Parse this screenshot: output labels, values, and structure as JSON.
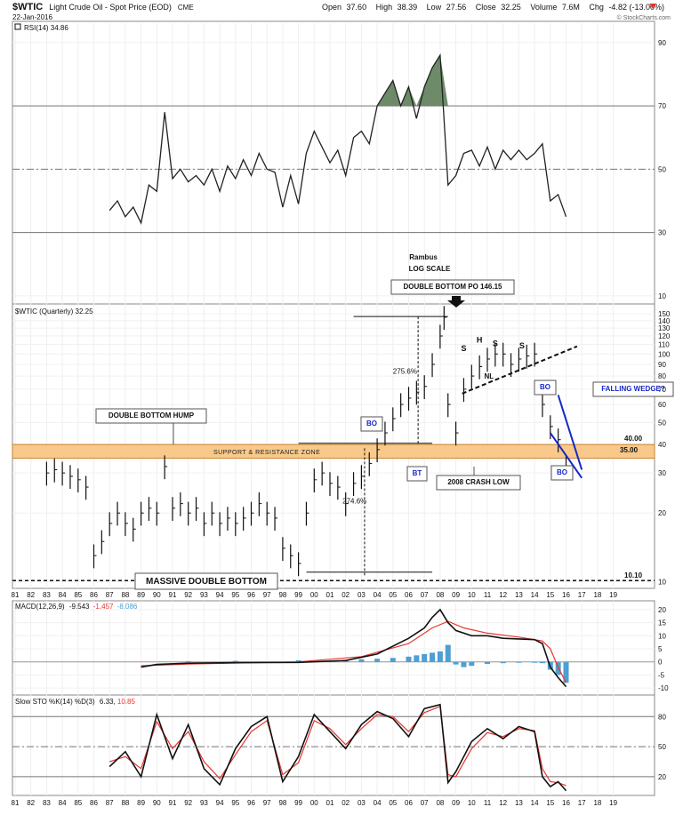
{
  "header": {
    "symbol": "$WTIC",
    "name": "Light Crude Oil - Spot Price (EOD)",
    "exchange": "CME",
    "date": "22-Jan-2016",
    "open_label": "Open",
    "open": "37.60",
    "high_label": "High",
    "high": "38.39",
    "low_label": "Low",
    "low": "27.56",
    "close_label": "Close",
    "close": "32.25",
    "volume_label": "Volume",
    "volume": "7.6M",
    "chg_label": "Chg",
    "chg": "-4.82 (-13.00%)",
    "watermark": "© StockCharts.com"
  },
  "colors": {
    "price": "#111111",
    "macd_signal": "#e8352e",
    "histogram": "#4f9fd1",
    "zone": "#f8c98a",
    "rsi_fill": "#5d7e59",
    "annotation_blue": "#1728c8"
  },
  "x_axis_labels": [
    "81",
    "82",
    "83",
    "84",
    "85",
    "86",
    "87",
    "88",
    "89",
    "90",
    "91",
    "92",
    "93",
    "94",
    "95",
    "96",
    "97",
    "98",
    "99",
    "00",
    "01",
    "02",
    "03",
    "04",
    "05",
    "06",
    "07",
    "08",
    "09",
    "10",
    "11",
    "12",
    "13",
    "14",
    "15",
    "16",
    "17",
    "18",
    "19"
  ],
  "chart_data": [
    {
      "type": "line",
      "title": "RSI(14) 34.86",
      "legend_value": "34.86",
      "ylim": [
        8,
        95
      ],
      "y_ticks": [
        10,
        30,
        50,
        70,
        90
      ],
      "reference_lines": [
        30,
        50,
        70
      ],
      "series": [
        {
          "x": [
            1987.0,
            1987.5,
            1988.0,
            1988.5,
            1989.0,
            1989.5,
            1990.0,
            1990.5,
            1991.0,
            1991.5,
            1992.0,
            1992.5,
            1993.0,
            1993.5,
            1994.0,
            1994.5,
            1995.0,
            1995.5,
            1996.0,
            1996.5,
            1997.0,
            1997.5,
            1998.0,
            1998.5,
            1999.0,
            1999.5,
            2000.0,
            2000.5,
            2001.0,
            2001.5,
            2002.0,
            2002.5,
            2003.0,
            2003.5,
            2004.0,
            2004.5,
            2005.0,
            2005.5,
            2006.0,
            2006.5,
            2007.0,
            2007.5,
            2008.0,
            2008.5,
            2009.0,
            2009.5,
            2010.0,
            2010.5,
            2011.0,
            2011.5,
            2012.0,
            2012.5,
            2013.0,
            2013.5,
            2014.0,
            2014.5,
            2015.0,
            2015.5,
            2016.0
          ],
          "y": [
            37,
            40,
            35,
            38,
            33,
            45,
            43,
            68,
            47,
            50,
            46,
            48,
            45,
            50,
            43,
            51,
            47,
            53,
            48,
            55,
            50,
            49,
            38,
            48,
            39,
            55,
            62,
            57,
            52,
            56,
            48,
            60,
            62,
            58,
            70,
            74,
            78,
            70,
            76,
            66,
            76,
            82,
            86,
            45,
            48,
            55,
            56,
            51,
            57,
            50,
            56,
            53,
            56,
            53,
            55,
            58,
            40,
            42,
            35
          ]
        }
      ],
      "overbought_fills": [
        [
          2004.0,
          2008.5
        ]
      ]
    },
    {
      "type": "line",
      "title": "$WTIC (Quarterly) 32.25",
      "y_scale": "log",
      "ylim": [
        9.5,
        160
      ],
      "y_ticks": [
        10,
        20,
        30,
        40,
        50,
        60,
        70,
        80,
        90,
        100,
        110,
        120,
        130,
        140,
        150
      ],
      "annotations": {
        "rambus": "Rambus",
        "log_scale": "LOG SCALE",
        "double_bottom_po": "DOUBLE BOTTOM PO 146.15",
        "double_bottom_hump": "DOUBLE BOTTOM HUMP",
        "support_resistance": "SUPPORT & RESISTANCE ZONE",
        "massive_double_bottom": "MASSIVE DOUBLE BOTTOM",
        "crash_low": "2008 CRASH LOW",
        "falling_wedge": "FALLING WEDGE?",
        "bo": "BO",
        "bt": "BT",
        "pct_upper": "275.6%",
        "pct_lower": "274.6%",
        "h": "H",
        "s": "S",
        "nl": "NL",
        "level_40": "40.00",
        "level_35": "35.00",
        "level_10": "10.10"
      },
      "zone": [
        34.8,
        40.0
      ],
      "series": [
        {
          "x": [
            1983.0,
            1983.5,
            1984.0,
            1984.5,
            1985.0,
            1985.5,
            1986.0,
            1986.5,
            1987.0,
            1987.5,
            1988.0,
            1988.5,
            1989.0,
            1989.5,
            1990.0,
            1990.5,
            1991.0,
            1991.5,
            1992.0,
            1992.5,
            1993.0,
            1993.5,
            1994.0,
            1994.5,
            1995.0,
            1995.5,
            1996.0,
            1996.5,
            1997.0,
            1997.5,
            1998.0,
            1998.5,
            1999.0,
            1999.5,
            2000.0,
            2000.5,
            2001.0,
            2001.5,
            2002.0,
            2002.5,
            2003.0,
            2003.5,
            2004.0,
            2004.5,
            2005.0,
            2005.5,
            2006.0,
            2006.5,
            2007.0,
            2007.5,
            2008.0,
            2008.25,
            2008.5,
            2009.0,
            2009.5,
            2010.0,
            2010.5,
            2011.0,
            2011.5,
            2012.0,
            2012.5,
            2013.0,
            2013.5,
            2014.0,
            2014.5,
            2015.0,
            2015.5,
            2016.0
          ],
          "y": [
            30,
            31,
            30,
            29,
            28,
            26,
            13,
            15,
            18,
            20,
            18,
            17,
            20,
            21,
            20,
            32,
            21,
            22,
            20,
            21,
            18,
            20,
            18,
            19,
            18,
            19,
            20,
            22,
            20,
            19,
            14,
            13,
            12,
            20,
            28,
            30,
            27,
            26,
            22,
            27,
            29,
            33,
            38,
            45,
            52,
            60,
            64,
            68,
            72,
            90,
            120,
            145,
            60,
            45,
            70,
            80,
            88,
            95,
            100,
            100,
            90,
            95,
            98,
            100,
            60,
            48,
            42,
            32
          ]
        }
      ],
      "box_labels": [
        {
          "text": "DOUBLE BOTTOM HUMP",
          "x": 1988.2,
          "y": 57
        },
        {
          "text": "MASSIVE DOUBLE BOTTOM",
          "x": 1994.5,
          "y": 10.7
        }
      ],
      "head_shoulders": [
        {
          "text": "S",
          "x": 2009.5,
          "y": 103
        },
        {
          "text": "H",
          "x": 2010.5,
          "y": 112
        },
        {
          "text": "S",
          "x": 2011.5,
          "y": 108
        },
        {
          "text": "S",
          "x": 2013.2,
          "y": 106
        }
      ]
    },
    {
      "type": "line",
      "title": "MACD(12,26,9)",
      "legend_values": [
        "-9.543",
        "-1.457",
        "-8.086"
      ],
      "ylim": [
        -12,
        22
      ],
      "y_ticks": [
        -10,
        -5,
        0,
        5,
        10,
        15,
        20
      ],
      "series": [
        {
          "name": "MACD",
          "x": [
            1989.0,
            1990.0,
            1992.0,
            1995.0,
            1999.0,
            2002.0,
            2004.0,
            2006.0,
            2007.0,
            2007.5,
            2008.0,
            2008.5,
            2009.0,
            2010.0,
            2011.0,
            2012.0,
            2014.0,
            2014.5,
            2015.0,
            2015.5,
            2016.0
          ],
          "y": [
            -2,
            -1,
            -0.5,
            -0.3,
            -0.2,
            0.5,
            3,
            9,
            13,
            17,
            20,
            15,
            12,
            10,
            10,
            9,
            8.5,
            7,
            -2,
            -6,
            -9.5
          ]
        },
        {
          "name": "Signal",
          "x": [
            1989.0,
            1992.0,
            1999.0,
            2003.0,
            2006.0,
            2007.5,
            2008.5,
            2009.5,
            2011.0,
            2013.0,
            2014.5,
            2015.0,
            2015.5,
            2016.0
          ],
          "y": [
            -1.5,
            -0.8,
            0,
            2,
            7,
            13,
            15.5,
            13,
            11,
            9.5,
            8,
            5,
            -2,
            -8
          ]
        }
      ],
      "histogram": {
        "x": [
          1992.0,
          1995.0,
          1999.0,
          2002.0,
          2003.0,
          2004.0,
          2005.0,
          2006.0,
          2006.5,
          2007.0,
          2007.5,
          2008.0,
          2008.5,
          2009.0,
          2009.5,
          2010.0,
          2011.0,
          2012.0,
          2013.0,
          2014.0,
          2014.5,
          2015.0,
          2015.5,
          2016.0
        ],
        "y": [
          0.3,
          0.4,
          0.6,
          0.8,
          1,
          1.2,
          1.5,
          2,
          2.5,
          3,
          3.5,
          4,
          6.5,
          -1,
          -2,
          -1.5,
          -0.8,
          -0.5,
          -0.3,
          -0.2,
          -0.5,
          -3,
          -5,
          -8
        ]
      }
    },
    {
      "type": "line",
      "title": "Slow STO %K(14) %D(3) 6.33, 10.85",
      "legend_values": [
        "6.33",
        "10.85"
      ],
      "ylim": [
        3,
        98
      ],
      "y_ticks": [
        20,
        50,
        80
      ],
      "reference_lines": [
        20,
        50,
        80
      ],
      "series": [
        {
          "name": "%K",
          "x": [
            1987.0,
            1988.0,
            1989.0,
            1990.0,
            1991.0,
            1992.0,
            1993.0,
            1994.0,
            1995.0,
            1996.0,
            1997.0,
            1998.0,
            1999.0,
            2000.0,
            2001.0,
            2002.0,
            2003.0,
            2004.0,
            2005.0,
            2006.0,
            2007.0,
            2008.0,
            2008.5,
            2009.0,
            2010.0,
            2011.0,
            2012.0,
            2013.0,
            2014.0,
            2014.5,
            2015.0,
            2015.5,
            2016.0
          ],
          "y": [
            30,
            45,
            20,
            82,
            38,
            72,
            28,
            12,
            48,
            70,
            80,
            15,
            40,
            82,
            65,
            48,
            72,
            85,
            78,
            60,
            88,
            92,
            14,
            25,
            55,
            68,
            58,
            70,
            65,
            20,
            10,
            15,
            6
          ]
        },
        {
          "name": "%D",
          "x": [
            1987.0,
            1988.0,
            1989.0,
            1990.0,
            1991.0,
            1992.0,
            1993.0,
            1994.0,
            1995.0,
            1996.0,
            1997.0,
            1998.0,
            1999.0,
            2000.0,
            2001.0,
            2002.0,
            2003.0,
            2004.0,
            2005.0,
            2006.0,
            2007.0,
            2008.0,
            2008.5,
            2009.0,
            2010.0,
            2011.0,
            2012.0,
            2013.0,
            2014.0,
            2014.5,
            2015.0,
            2015.5,
            2016.0
          ],
          "y": [
            35,
            40,
            28,
            75,
            48,
            65,
            35,
            18,
            42,
            65,
            76,
            22,
            34,
            76,
            68,
            52,
            68,
            82,
            80,
            65,
            84,
            90,
            22,
            20,
            48,
            64,
            60,
            68,
            66,
            28,
            15,
            14,
            11
          ]
        }
      ]
    }
  ]
}
